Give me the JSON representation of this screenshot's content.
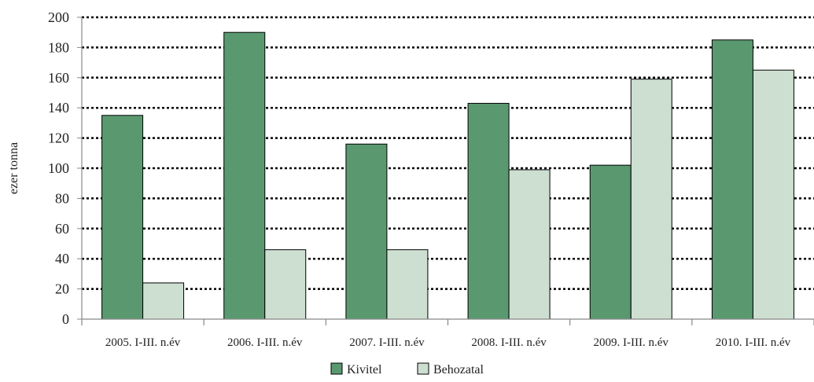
{
  "chart_data": {
    "type": "bar",
    "categories": [
      "2005. I-III. n.év",
      "2006. I-III. n.év",
      "2007. I-III. n.év",
      "2008. I-III. n.év",
      "2009. I-III. n.év",
      "2010. I-III. n.év"
    ],
    "series": [
      {
        "name": "Kivitel",
        "values": [
          135,
          190,
          116,
          143,
          102,
          185
        ],
        "color": "#5a9970"
      },
      {
        "name": "Behozatal",
        "values": [
          24,
          46,
          46,
          99,
          159,
          165
        ],
        "color": "#cddfd1"
      }
    ],
    "title": "",
    "xlabel": "",
    "ylabel": "ezer tonna",
    "ylim": [
      0,
      200
    ],
    "yticks": [
      "0",
      "20",
      "40",
      "60",
      "80",
      "100",
      "120",
      "140",
      "160",
      "180",
      "200"
    ],
    "grid": true,
    "legend_position": "bottom-center"
  }
}
